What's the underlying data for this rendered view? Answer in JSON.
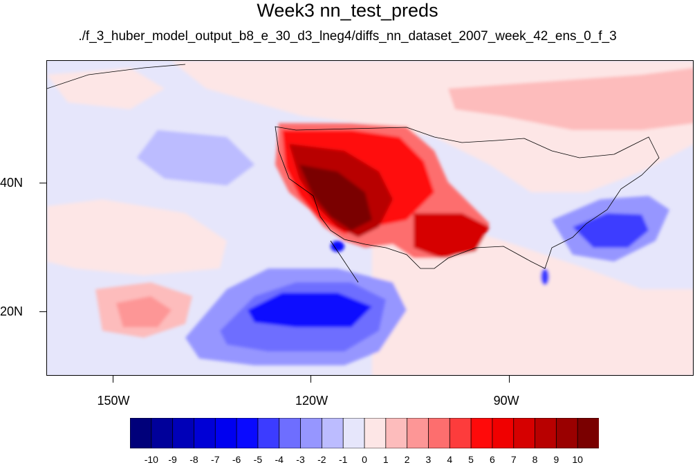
{
  "header": {
    "title": "Week3 nn_test_preds",
    "subtitle": "./f_3_huber_model_output_b8_e_30_d3_lneg4/diffs_nn_dataset_2007_week_42_ens_0_f_3"
  },
  "map": {
    "lon_range": [
      -160,
      -62
    ],
    "lat_range": [
      10,
      59
    ],
    "x_ticks": [
      {
        "label": "150W",
        "lon": -150
      },
      {
        "label": "120W",
        "lon": -120
      },
      {
        "label": "90W",
        "lon": -90
      }
    ],
    "y_ticks": [
      {
        "label": "40N",
        "lat": 40
      },
      {
        "label": "20N",
        "lat": 20
      }
    ]
  },
  "colorbar": {
    "labels": [
      "-10",
      "-9",
      "-8",
      "-7",
      "-6",
      "-5",
      "-4",
      "-3",
      "-2",
      "-1",
      "0",
      "1",
      "2",
      "3",
      "4",
      "5",
      "6",
      "7",
      "8",
      "9",
      "10"
    ],
    "colors": [
      "#00007a",
      "#00009a",
      "#0000b8",
      "#0000d6",
      "#0000f0",
      "#0a0aff",
      "#3c3cff",
      "#6e6eff",
      "#9696ff",
      "#bcbcff",
      "#e6e6fb",
      "#fde6e6",
      "#fdbcbc",
      "#fd9696",
      "#fd6e6e",
      "#fd3c3c",
      "#ff0a0a",
      "#f00000",
      "#d60000",
      "#b80000",
      "#9a0000",
      "#7a0000"
    ]
  }
}
